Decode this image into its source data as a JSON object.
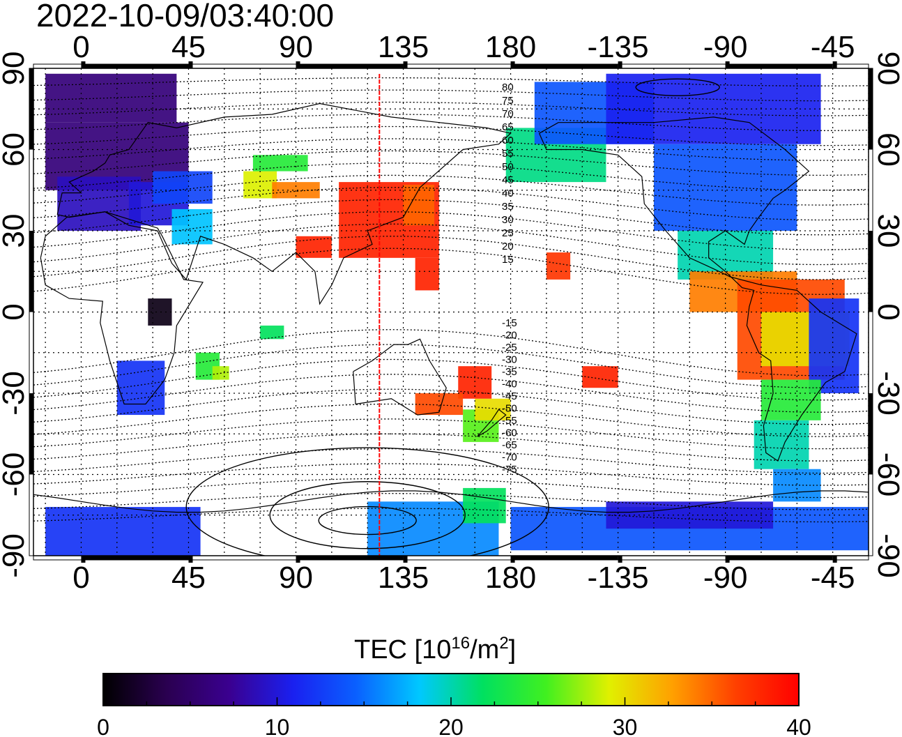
{
  "timestamp": "2022-10-09/03:40:00",
  "colorbar": {
    "title_main": "TEC  [10",
    "title_exp": "16",
    "title_mid": "/m",
    "title_exp2": "2",
    "title_end": "]",
    "ticks": [
      "0",
      "10",
      "20",
      "30",
      "40"
    ]
  },
  "axes": {
    "lon_labels": [
      "0",
      "45",
      "90",
      "135",
      "180",
      "-135",
      "-90",
      "-45"
    ],
    "lat_labels": [
      "90",
      "60",
      "30",
      "0",
      "-30",
      "-60",
      "-90"
    ]
  },
  "map_data": {
    "type": "global TEC map",
    "value_range": [
      0,
      40
    ],
    "lon_range_east": [
      -20,
      330
    ],
    "lat_range": [
      -90,
      90
    ],
    "gridlines": "dotted every 15 degrees",
    "red_vertical_line_lon": 125,
    "contour_labels_north": [
      "80",
      "75",
      "70",
      "65",
      "60",
      "55",
      "50",
      "45",
      "40",
      "35",
      "30",
      "25",
      "20",
      "15"
    ],
    "contour_labels_south": [
      "-15",
      "-20",
      "-25",
      "-30",
      "-35",
      "-40",
      "-45",
      "-50",
      "-55",
      "-60",
      "-65",
      "-70",
      "-75"
    ]
  },
  "colors": {
    "red_line": "#ff0000",
    "colormap": [
      "#000000",
      "#2a0050",
      "#3a0090",
      "#1a20f0",
      "#0a60ff",
      "#00c8ff",
      "#00e060",
      "#40f020",
      "#e0f000",
      "#ffa000",
      "#ff4000",
      "#ff0000"
    ]
  }
}
